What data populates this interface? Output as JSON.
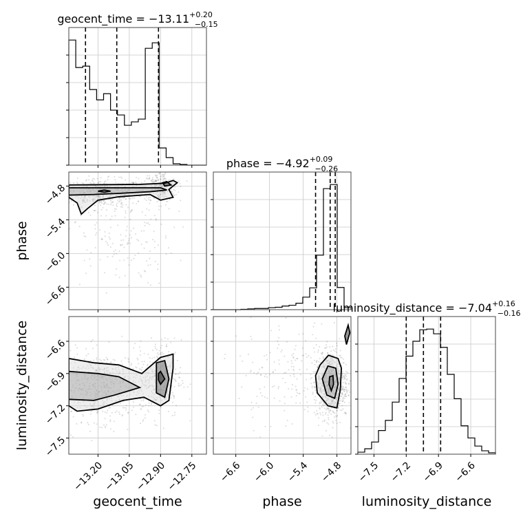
{
  "chart_data": {
    "type": "corner",
    "parameters": [
      "geocent_time",
      "phase",
      "luminosity_distance"
    ],
    "titles": [
      {
        "name": "geocent_time",
        "median": "−13.11",
        "plus": "+0.20",
        "minus": "−0.15"
      },
      {
        "name": "phase",
        "median": "−4.92",
        "plus": "+0.09",
        "minus": "−0.26"
      },
      {
        "name": "luminosity_distance",
        "median": "−7.04",
        "plus": "+0.16",
        "minus": "−0.16"
      }
    ],
    "axis_labels": {
      "x": [
        "geocent_time",
        "phase",
        "luminosity_distance"
      ],
      "y": [
        "phase",
        "luminosity_distance"
      ]
    },
    "ranges": {
      "geocent_time": [
        -13.34,
        -12.68
      ],
      "phase": [
        -7.0,
        -4.55
      ],
      "luminosity_distance": [
        -7.65,
        -6.37
      ]
    },
    "ticks": {
      "geocent_time": [
        {
          "v": -13.2,
          "label": "−13.20"
        },
        {
          "v": -13.05,
          "label": "−13.05"
        },
        {
          "v": -12.9,
          "label": "−12.90"
        },
        {
          "v": -12.75,
          "label": "−12.75"
        }
      ],
      "phase": [
        {
          "v": -6.6,
          "label": "−6.6"
        },
        {
          "v": -6.0,
          "label": "−6.0"
        },
        {
          "v": -5.4,
          "label": "−5.4"
        },
        {
          "v": -4.8,
          "label": "−4.8"
        }
      ],
      "luminosity_distance": [
        {
          "v": -7.5,
          "label": "−7.5"
        },
        {
          "v": -7.2,
          "label": "−7.2"
        },
        {
          "v": -6.9,
          "label": "−6.9"
        },
        {
          "v": -6.6,
          "label": "−6.6"
        }
      ]
    },
    "histograms": {
      "geocent_time": {
        "edges": [
          -13.34,
          -13.3067,
          -13.2733,
          -13.24,
          -13.2067,
          -13.1733,
          -13.14,
          -13.1067,
          -13.0733,
          -13.04,
          -13.0067,
          -12.9733,
          -12.94,
          -12.9067,
          -12.8733,
          -12.84,
          -12.8067,
          -12.7733,
          -12.74,
          -12.7067,
          -12.68
        ],
        "counts": [
          182,
          142,
          144,
          110,
          95,
          104,
          80,
          73,
          58,
          63,
          67,
          170,
          178,
          25,
          11,
          2,
          1,
          0,
          0,
          0
        ],
        "quantiles": [
          -13.26,
          -13.11,
          -12.91
        ]
      },
      "phase": {
        "edges": [
          -7.0,
          -6.8775,
          -6.755,
          -6.6325,
          -6.51,
          -6.3875,
          -6.265,
          -6.1425,
          -6.02,
          -5.8975,
          -5.775,
          -5.6525,
          -5.53,
          -5.4075,
          -5.285,
          -5.1625,
          -5.04,
          -4.9175,
          -4.795,
          -4.6725,
          -4.55
        ],
        "counts": [
          0,
          0,
          0,
          0,
          1,
          2,
          3,
          3,
          5,
          6,
          9,
          11,
          16,
          31,
          54,
          135,
          300,
          310,
          55,
          5
        ],
        "quantiles": [
          -5.18,
          -4.92,
          -4.83
        ]
      },
      "luminosity_distance": {
        "edges": [
          -7.65,
          -7.586,
          -7.522,
          -7.458,
          -7.394,
          -7.33,
          -7.266,
          -7.202,
          -7.138,
          -7.074,
          -7.01,
          -6.946,
          -6.882,
          -6.818,
          -6.754,
          -6.69,
          -6.626,
          -6.562,
          -6.498,
          -6.434,
          -6.37
        ],
        "counts": [
          3,
          8,
          18,
          35,
          50,
          77,
          112,
          145,
          167,
          184,
          185,
          178,
          158,
          118,
          82,
          42,
          24,
          12,
          5,
          2
        ],
        "quantiles": [
          -7.2,
          -7.04,
          -6.88
        ]
      }
    },
    "scatter_clouds": [
      {
        "x": "geocent_time",
        "y": "phase",
        "center": [
          -13.18,
          -4.92
        ],
        "spread": [
          0.1,
          0.12
        ],
        "n": 500
      },
      {
        "x": "geocent_time",
        "y": "phase",
        "center": [
          -12.9,
          -4.82
        ],
        "spread": [
          0.04,
          0.14
        ],
        "n": 220
      },
      {
        "x": "geocent_time",
        "y": "phase",
        "center": [
          -13.1,
          -5.7
        ],
        "spread": [
          0.13,
          0.45
        ],
        "n": 180
      },
      {
        "x": "geocent_time",
        "y": "luminosity_distance",
        "center": [
          -13.18,
          -7.02
        ],
        "spread": [
          0.11,
          0.16
        ],
        "n": 600
      },
      {
        "x": "geocent_time",
        "y": "luminosity_distance",
        "center": [
          -12.9,
          -6.95
        ],
        "spread": [
          0.05,
          0.18
        ],
        "n": 300
      },
      {
        "x": "phase",
        "y": "luminosity_distance",
        "center": [
          -4.9,
          -7.0
        ],
        "spread": [
          0.15,
          0.16
        ],
        "n": 700
      },
      {
        "x": "phase",
        "y": "luminosity_distance",
        "center": [
          -5.6,
          -6.9
        ],
        "spread": [
          0.5,
          0.25
        ],
        "n": 200
      }
    ],
    "contours": [
      {
        "x": "geocent_time",
        "y": "phase",
        "rings": [
          [
            [
              -13.34,
              -4.78
            ],
            [
              -13.0,
              -4.77
            ],
            [
              -12.88,
              -4.75
            ],
            [
              -12.84,
              -4.7
            ],
            [
              -12.82,
              -4.74
            ],
            [
              -12.86,
              -4.86
            ],
            [
              -12.84,
              -5.0
            ],
            [
              -12.9,
              -5.05
            ],
            [
              -12.95,
              -4.95
            ],
            [
              -13.1,
              -4.99
            ],
            [
              -13.2,
              -5.05
            ],
            [
              -13.25,
              -5.2
            ],
            [
              -13.28,
              -5.3
            ],
            [
              -13.3,
              -5.1
            ],
            [
              -13.34,
              -5.0
            ]
          ],
          [
            [
              -13.34,
              -4.83
            ],
            [
              -13.1,
              -4.83
            ],
            [
              -12.9,
              -4.83
            ],
            [
              -12.87,
              -4.87
            ],
            [
              -12.95,
              -4.9
            ],
            [
              -13.1,
              -4.93
            ],
            [
              -13.22,
              -4.95
            ],
            [
              -13.34,
              -4.96
            ]
          ],
          [
            [
              -13.2,
              -4.89
            ],
            [
              -13.17,
              -4.87
            ],
            [
              -13.14,
              -4.89
            ],
            [
              -13.17,
              -4.91
            ]
          ],
          [
            [
              -12.89,
              -4.74
            ],
            [
              -12.87,
              -4.72
            ],
            [
              -12.85,
              -4.78
            ],
            [
              -12.88,
              -4.8
            ]
          ]
        ]
      },
      {
        "x": "geocent_time",
        "y": "luminosity_distance",
        "rings": [
          [
            [
              -13.34,
              -6.76
            ],
            [
              -13.22,
              -6.8
            ],
            [
              -13.1,
              -6.82
            ],
            [
              -12.99,
              -6.9
            ],
            [
              -12.9,
              -6.75
            ],
            [
              -12.84,
              -6.72
            ],
            [
              -12.84,
              -6.85
            ],
            [
              -12.86,
              -7.15
            ],
            [
              -12.9,
              -7.2
            ],
            [
              -12.98,
              -7.12
            ],
            [
              -13.08,
              -7.15
            ],
            [
              -13.2,
              -7.23
            ],
            [
              -13.3,
              -7.25
            ],
            [
              -13.34,
              -7.2
            ]
          ],
          [
            [
              -13.34,
              -6.88
            ],
            [
              -13.2,
              -6.9
            ],
            [
              -13.1,
              -6.93
            ],
            [
              -13.0,
              -7.03
            ],
            [
              -13.12,
              -7.1
            ],
            [
              -13.22,
              -7.15
            ],
            [
              -13.34,
              -7.14
            ]
          ],
          [
            [
              -12.92,
              -6.8
            ],
            [
              -12.88,
              -6.78
            ],
            [
              -12.86,
              -6.95
            ],
            [
              -12.88,
              -7.12
            ],
            [
              -12.92,
              -7.08
            ],
            [
              -12.92,
              -6.9
            ]
          ],
          [
            [
              -12.91,
              -6.9
            ],
            [
              -12.9,
              -6.88
            ],
            [
              -12.88,
              -6.95
            ],
            [
              -12.9,
              -7.0
            ],
            [
              -12.91,
              -6.96
            ]
          ]
        ]
      },
      {
        "x": "phase",
        "y": "luminosity_distance",
        "rings": [
          [
            [
              -4.95,
              -6.73
            ],
            [
              -4.78,
              -6.76
            ],
            [
              -4.72,
              -6.85
            ],
            [
              -4.74,
              -7.05
            ],
            [
              -4.8,
              -7.22
            ],
            [
              -4.96,
              -7.2
            ],
            [
              -5.15,
              -7.08
            ],
            [
              -5.18,
              -6.92
            ],
            [
              -5.1,
              -6.82
            ]
          ],
          [
            [
              -4.96,
              -6.83
            ],
            [
              -4.82,
              -6.85
            ],
            [
              -4.78,
              -7.0
            ],
            [
              -4.84,
              -7.13
            ],
            [
              -4.98,
              -7.1
            ],
            [
              -5.06,
              -6.95
            ]
          ],
          [
            [
              -4.93,
              -6.93
            ],
            [
              -4.87,
              -6.92
            ],
            [
              -4.86,
              -7.0
            ],
            [
              -4.9,
              -7.06
            ],
            [
              -4.94,
              -7.0
            ]
          ],
          [
            [
              -4.66,
              -6.55
            ],
            [
              -4.6,
              -6.45
            ],
            [
              -4.57,
              -6.52
            ],
            [
              -4.63,
              -6.63
            ]
          ]
        ]
      }
    ],
    "grid": true
  }
}
